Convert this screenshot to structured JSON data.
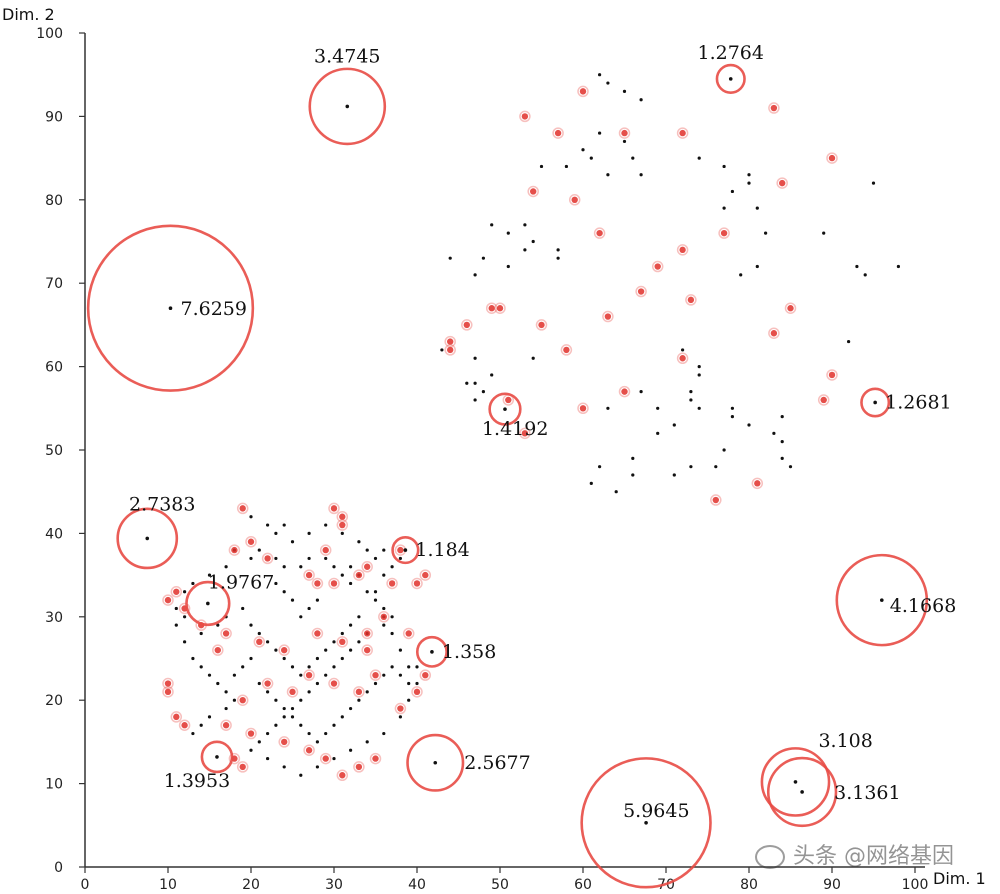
{
  "chart_data": {
    "type": "scatter",
    "xlabel": "Dim. 1",
    "ylabel": "Dim. 2",
    "xlim": [
      0,
      100
    ],
    "ylim": [
      0,
      100
    ],
    "x_ticks": [
      0,
      10,
      20,
      30,
      40,
      50,
      60,
      70,
      80,
      90,
      100
    ],
    "y_ticks": [
      0,
      10,
      20,
      30,
      40,
      50,
      60,
      70,
      80,
      90,
      100
    ],
    "grid": false,
    "colors": {
      "normal_point": "#111111",
      "outlier_point": "#e0302a",
      "score_circle": "#e84b45"
    },
    "outliers": [
      {
        "x": 31.6,
        "y": 91.2,
        "score": "3.4745"
      },
      {
        "x": 10.3,
        "y": 67.0,
        "score": "7.6259"
      },
      {
        "x": 77.8,
        "y": 94.5,
        "score": "1.2764"
      },
      {
        "x": 95.2,
        "y": 55.7,
        "score": "1.2681"
      },
      {
        "x": 50.6,
        "y": 54.9,
        "score": "1.4192"
      },
      {
        "x": 7.5,
        "y": 39.4,
        "score": "2.7383"
      },
      {
        "x": 14.8,
        "y": 31.6,
        "score": "1.9767"
      },
      {
        "x": 38.6,
        "y": 38.0,
        "score": "1.184"
      },
      {
        "x": 41.8,
        "y": 25.8,
        "score": "1.358"
      },
      {
        "x": 15.9,
        "y": 13.2,
        "score": "1.3953"
      },
      {
        "x": 42.2,
        "y": 12.5,
        "score": "2.5677"
      },
      {
        "x": 96.0,
        "y": 32.0,
        "score": "4.1668"
      },
      {
        "x": 67.6,
        "y": 5.3,
        "score": "5.9645"
      },
      {
        "x": 85.6,
        "y": 10.2,
        "score": "3.108"
      },
      {
        "x": 86.4,
        "y": 9.0,
        "score": "3.1361"
      }
    ],
    "cluster_upper_right": {
      "black": [
        [
          62,
          95
        ],
        [
          63,
          94
        ],
        [
          65,
          93
        ],
        [
          67,
          92
        ],
        [
          62,
          88
        ],
        [
          65,
          87
        ],
        [
          66,
          85
        ],
        [
          60,
          86
        ],
        [
          61,
          85
        ],
        [
          63,
          83
        ],
        [
          67,
          83
        ],
        [
          55,
          84
        ],
        [
          58,
          84
        ],
        [
          74,
          85
        ],
        [
          77,
          84
        ],
        [
          80,
          83
        ],
        [
          80,
          82
        ],
        [
          78,
          81
        ],
        [
          77,
          79
        ],
        [
          81,
          79
        ],
        [
          82,
          76
        ],
        [
          89,
          76
        ],
        [
          95,
          82
        ],
        [
          98,
          72
        ],
        [
          94,
          71
        ],
        [
          93,
          72
        ],
        [
          79,
          71
        ],
        [
          81,
          72
        ],
        [
          57,
          74
        ],
        [
          57,
          73
        ],
        [
          53,
          74
        ],
        [
          54,
          75
        ],
        [
          51,
          72
        ],
        [
          51,
          76
        ],
        [
          48,
          73
        ],
        [
          47,
          71
        ],
        [
          49,
          77
        ],
        [
          53,
          77
        ],
        [
          92,
          63
        ],
        [
          72,
          62
        ],
        [
          74,
          60
        ],
        [
          74,
          59
        ],
        [
          73,
          57
        ],
        [
          73,
          56
        ],
        [
          74,
          55
        ],
        [
          78,
          55
        ],
        [
          78,
          54
        ],
        [
          80,
          53
        ],
        [
          83,
          52
        ],
        [
          84,
          54
        ],
        [
          84,
          51
        ],
        [
          84,
          49
        ],
        [
          85,
          48
        ],
        [
          77,
          50
        ],
        [
          76,
          48
        ],
        [
          73,
          48
        ],
        [
          71,
          47
        ],
        [
          66,
          49
        ],
        [
          66,
          47
        ],
        [
          62,
          48
        ],
        [
          61,
          46
        ],
        [
          64,
          45
        ],
        [
          71,
          53
        ],
        [
          69,
          52
        ],
        [
          69,
          55
        ],
        [
          67,
          57
        ],
        [
          63,
          55
        ],
        [
          46,
          58
        ],
        [
          47,
          58
        ],
        [
          48,
          57
        ],
        [
          47,
          56
        ],
        [
          49,
          59
        ],
        [
          47,
          61
        ],
        [
          54,
          61
        ],
        [
          43,
          62
        ],
        [
          44,
          73
        ]
      ],
      "red": [
        [
          60,
          93
        ],
        [
          53,
          90
        ],
        [
          57,
          88
        ],
        [
          65,
          88
        ],
        [
          72,
          88
        ],
        [
          83,
          91
        ],
        [
          90,
          85
        ],
        [
          59,
          80
        ],
        [
          77,
          76
        ],
        [
          84,
          82
        ],
        [
          62,
          76
        ],
        [
          72,
          74
        ],
        [
          69,
          72
        ],
        [
          73,
          68
        ],
        [
          85,
          67
        ],
        [
          54,
          81
        ],
        [
          83,
          64
        ],
        [
          72,
          61
        ],
        [
          90,
          59
        ],
        [
          89,
          56
        ],
        [
          65,
          57
        ],
        [
          60,
          55
        ],
        [
          49,
          67
        ],
        [
          50,
          67
        ],
        [
          46,
          65
        ],
        [
          51,
          56
        ],
        [
          44,
          62
        ],
        [
          44,
          63
        ],
        [
          53,
          52
        ],
        [
          58,
          62
        ],
        [
          55,
          65
        ],
        [
          63,
          66
        ],
        [
          67,
          69
        ],
        [
          76,
          44
        ],
        [
          81,
          46
        ]
      ]
    },
    "cluster_lower_left": {
      "black": [
        [
          20,
          42
        ],
        [
          22,
          41
        ],
        [
          23,
          40
        ],
        [
          21,
          38
        ],
        [
          20,
          37
        ],
        [
          23,
          37
        ],
        [
          24,
          36
        ],
        [
          23,
          34
        ],
        [
          24,
          33
        ],
        [
          25,
          32
        ],
        [
          26,
          36
        ],
        [
          27,
          37
        ],
        [
          29,
          37
        ],
        [
          30,
          36
        ],
        [
          31,
          35
        ],
        [
          32,
          34
        ],
        [
          34,
          33
        ],
        [
          35,
          32
        ],
        [
          36,
          31
        ],
        [
          37,
          30
        ],
        [
          36,
          29
        ],
        [
          34,
          28
        ],
        [
          33,
          27
        ],
        [
          32,
          26
        ],
        [
          31,
          25
        ],
        [
          30,
          24
        ],
        [
          29,
          23
        ],
        [
          28,
          22
        ],
        [
          27,
          21
        ],
        [
          26,
          20
        ],
        [
          25,
          19
        ],
        [
          24,
          18
        ],
        [
          23,
          17
        ],
        [
          22,
          16
        ],
        [
          21,
          15
        ],
        [
          20,
          14
        ],
        [
          22,
          13
        ],
        [
          24,
          12
        ],
        [
          26,
          11
        ],
        [
          28,
          12
        ],
        [
          30,
          13
        ],
        [
          32,
          14
        ],
        [
          34,
          15
        ],
        [
          36,
          16
        ],
        [
          38,
          18
        ],
        [
          39,
          20
        ],
        [
          40,
          22
        ],
        [
          39,
          24
        ],
        [
          38,
          26
        ],
        [
          37,
          28
        ],
        [
          36,
          30
        ],
        [
          35,
          33
        ],
        [
          36,
          35
        ],
        [
          37,
          36
        ],
        [
          38,
          37
        ],
        [
          34,
          38
        ],
        [
          33,
          39
        ],
        [
          31,
          40
        ],
        [
          29,
          41
        ],
        [
          27,
          40
        ],
        [
          25,
          39
        ],
        [
          24,
          41
        ],
        [
          18,
          38
        ],
        [
          17,
          36
        ],
        [
          15,
          35
        ],
        [
          13,
          34
        ],
        [
          12,
          33
        ],
        [
          11,
          31
        ],
        [
          11,
          29
        ],
        [
          12,
          27
        ],
        [
          13,
          25
        ],
        [
          14,
          24
        ],
        [
          15,
          23
        ],
        [
          16,
          22
        ],
        [
          17,
          21
        ],
        [
          18,
          20
        ],
        [
          17,
          19
        ],
        [
          15,
          18
        ],
        [
          14,
          17
        ],
        [
          13,
          16
        ],
        [
          16,
          29
        ],
        [
          17,
          30
        ],
        [
          19,
          31
        ],
        [
          20,
          29
        ],
        [
          21,
          28
        ],
        [
          22,
          27
        ],
        [
          23,
          26
        ],
        [
          24,
          25
        ],
        [
          25,
          24
        ],
        [
          26,
          23
        ],
        [
          27,
          24
        ],
        [
          28,
          25
        ],
        [
          29,
          26
        ],
        [
          30,
          27
        ],
        [
          31,
          28
        ],
        [
          32,
          29
        ],
        [
          33,
          30
        ],
        [
          20,
          25
        ],
        [
          19,
          24
        ],
        [
          18,
          23
        ],
        [
          21,
          22
        ],
        [
          22,
          21
        ],
        [
          23,
          20
        ],
        [
          24,
          19
        ],
        [
          25,
          18
        ],
        [
          26,
          17
        ],
        [
          27,
          16
        ],
        [
          28,
          15
        ],
        [
          29,
          16
        ],
        [
          30,
          17
        ],
        [
          31,
          18
        ],
        [
          32,
          19
        ],
        [
          33,
          20
        ],
        [
          34,
          21
        ],
        [
          35,
          22
        ],
        [
          36,
          23
        ],
        [
          37,
          24
        ],
        [
          38,
          23
        ],
        [
          39,
          22
        ],
        [
          40,
          24
        ],
        [
          26,
          30
        ],
        [
          27,
          31
        ],
        [
          28,
          32
        ],
        [
          35,
          37
        ],
        [
          36,
          38
        ],
        [
          33,
          35
        ],
        [
          32,
          36
        ],
        [
          14,
          28
        ],
        [
          12,
          30
        ]
      ],
      "red": [
        [
          19,
          43
        ],
        [
          30,
          43
        ],
        [
          31,
          42
        ],
        [
          31,
          41
        ],
        [
          20,
          39
        ],
        [
          18,
          38
        ],
        [
          22,
          37
        ],
        [
          29,
          38
        ],
        [
          34,
          36
        ],
        [
          33,
          35
        ],
        [
          38,
          38
        ],
        [
          37,
          34
        ],
        [
          30,
          34
        ],
        [
          28,
          34
        ],
        [
          27,
          35
        ],
        [
          11,
          33
        ],
        [
          10,
          32
        ],
        [
          12,
          31
        ],
        [
          14,
          29
        ],
        [
          17,
          28
        ],
        [
          21,
          27
        ],
        [
          24,
          26
        ],
        [
          28,
          28
        ],
        [
          31,
          27
        ],
        [
          34,
          26
        ],
        [
          35,
          23
        ],
        [
          33,
          21
        ],
        [
          30,
          22
        ],
        [
          27,
          23
        ],
        [
          25,
          21
        ],
        [
          22,
          22
        ],
        [
          19,
          20
        ],
        [
          11,
          18
        ],
        [
          12,
          17
        ],
        [
          17,
          17
        ],
        [
          20,
          16
        ],
        [
          24,
          15
        ],
        [
          27,
          14
        ],
        [
          29,
          13
        ],
        [
          31,
          11
        ],
        [
          33,
          12
        ],
        [
          35,
          13
        ],
        [
          38,
          19
        ],
        [
          40,
          21
        ],
        [
          41,
          23
        ],
        [
          39,
          28
        ],
        [
          36,
          30
        ],
        [
          34,
          28
        ],
        [
          10,
          21
        ],
        [
          10,
          22
        ],
        [
          16,
          26
        ],
        [
          18,
          13
        ],
        [
          19,
          12
        ],
        [
          40,
          34
        ],
        [
          41,
          35
        ]
      ]
    }
  },
  "watermark_text": "头条 @网络基因"
}
